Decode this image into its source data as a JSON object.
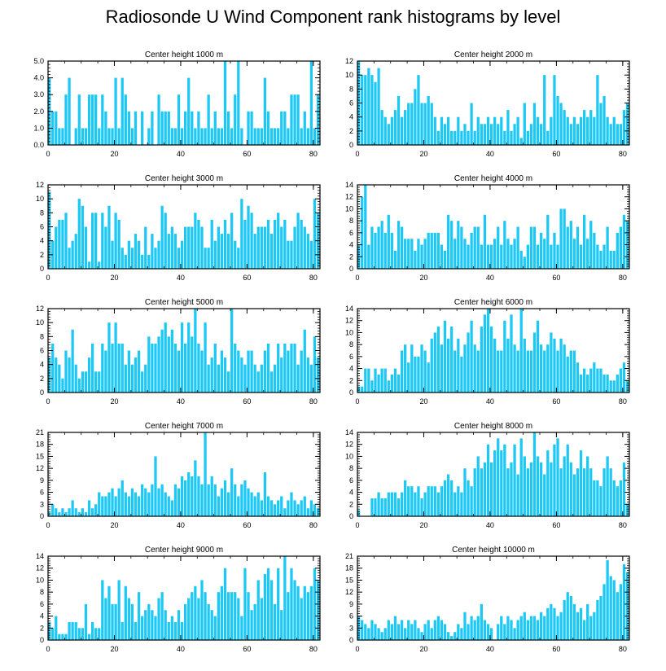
{
  "title": "Radiosonde U Wind Component rank histograms by level",
  "colors": {
    "bar": "#1ec8f5",
    "axis": "#000000"
  },
  "chart_data": [
    {
      "type": "bar",
      "title": "Center height 1000 m",
      "xlim": [
        0,
        82
      ],
      "ylim": [
        0,
        5
      ],
      "xticks": [
        0,
        20,
        40,
        60,
        80
      ],
      "yticks": [
        0,
        1,
        2,
        3,
        4,
        5
      ],
      "yticklabels": [
        "0.0",
        "1.0",
        "2.0",
        "3.0",
        "4.0",
        "5.0"
      ],
      "values": [
        4,
        2,
        2,
        1,
        1,
        3,
        4,
        0,
        1,
        3,
        1,
        1,
        3,
        3,
        3,
        1,
        3,
        2,
        1,
        1,
        4,
        1,
        4,
        3,
        2,
        1,
        2,
        0,
        2,
        0,
        1,
        2,
        0,
        3,
        2,
        2,
        2,
        1,
        1,
        3,
        1,
        2,
        4,
        2,
        1,
        2,
        1,
        1,
        3,
        1,
        2,
        1,
        1,
        5,
        2,
        1,
        3,
        5,
        1,
        0,
        2,
        2,
        1,
        1,
        1,
        4,
        2,
        1,
        1,
        1,
        2,
        2,
        1,
        3,
        3,
        3,
        1,
        2,
        1,
        5,
        1,
        3
      ]
    },
    {
      "type": "bar",
      "title": "Center height 2000 m",
      "xlim": [
        0,
        82
      ],
      "ylim": [
        0,
        12
      ],
      "xticks": [
        0,
        20,
        40,
        60,
        80
      ],
      "yticks": [
        0,
        2,
        4,
        6,
        8,
        10,
        12
      ],
      "yticklabels": [
        "0",
        "2",
        "4",
        "6",
        "8",
        "10",
        "12"
      ],
      "values": [
        12,
        10,
        10,
        11,
        10,
        9,
        11,
        5,
        4,
        3,
        4,
        5,
        7,
        4,
        5,
        6,
        6,
        8,
        10,
        6,
        6,
        7,
        6,
        4,
        2,
        4,
        3,
        4,
        2,
        2,
        4,
        2,
        3,
        2,
        6,
        2,
        4,
        3,
        3,
        4,
        3,
        4,
        3,
        4,
        2,
        5,
        2,
        3,
        4,
        1,
        6,
        2,
        3,
        6,
        4,
        3,
        10,
        2,
        4,
        10,
        7,
        6,
        5,
        4,
        3,
        4,
        3,
        4,
        5,
        4,
        5,
        4,
        10,
        6,
        7,
        4,
        3,
        4,
        3,
        3,
        5,
        6
      ]
    },
    {
      "type": "bar",
      "title": "Center height 3000 m",
      "xlim": [
        0,
        82
      ],
      "ylim": [
        0,
        12
      ],
      "xticks": [
        0,
        20,
        40,
        60,
        80
      ],
      "yticks": [
        0,
        2,
        4,
        6,
        8,
        10,
        12
      ],
      "yticklabels": [
        "0",
        "2",
        "4",
        "6",
        "8",
        "10",
        "12"
      ],
      "values": [
        11,
        4,
        6,
        7,
        7,
        8,
        3,
        4,
        5,
        10,
        9,
        6,
        1,
        8,
        8,
        1,
        8,
        6,
        9,
        4,
        8,
        7,
        3,
        2,
        4,
        3,
        5,
        4,
        2,
        6,
        2,
        5,
        3,
        4,
        9,
        8,
        5,
        6,
        5,
        3,
        4,
        6,
        6,
        6,
        8,
        7,
        6,
        3,
        3,
        7,
        4,
        6,
        5,
        7,
        5,
        8,
        4,
        3,
        10,
        7,
        9,
        8,
        5,
        6,
        6,
        6,
        7,
        5,
        7,
        8,
        6,
        7,
        4,
        4,
        6,
        8,
        7,
        6,
        5,
        4,
        10,
        8
      ]
    },
    {
      "type": "bar",
      "title": "Center height 4000 m",
      "xlim": [
        0,
        82
      ],
      "ylim": [
        0,
        14
      ],
      "xticks": [
        0,
        20,
        40,
        60,
        80
      ],
      "yticks": [
        0,
        2,
        4,
        6,
        8,
        10,
        12,
        14
      ],
      "yticklabels": [
        "0",
        "2",
        "4",
        "6",
        "8",
        "10",
        "12",
        "14"
      ],
      "values": [
        4,
        12,
        14,
        4,
        7,
        6,
        7,
        8,
        6,
        9,
        6,
        3,
        8,
        7,
        5,
        5,
        5,
        3,
        5,
        4,
        5,
        6,
        6,
        6,
        6,
        4,
        3,
        9,
        8,
        5,
        8,
        7,
        5,
        4,
        6,
        7,
        7,
        4,
        9,
        4,
        4,
        5,
        7,
        4,
        8,
        5,
        4,
        5,
        7,
        3,
        2,
        4,
        7,
        7,
        4,
        6,
        5,
        9,
        4,
        6,
        4,
        10,
        10,
        7,
        8,
        5,
        7,
        4,
        9,
        5,
        8,
        6,
        4,
        3,
        4,
        7,
        3,
        3,
        6,
        7,
        9,
        8
      ]
    },
    {
      "type": "bar",
      "title": "Center height 5000 m",
      "xlim": [
        0,
        82
      ],
      "ylim": [
        0,
        12
      ],
      "xticks": [
        0,
        20,
        40,
        60,
        80
      ],
      "yticks": [
        0,
        2,
        4,
        6,
        8,
        10,
        12
      ],
      "yticklabels": [
        "0",
        "2",
        "4",
        "6",
        "8",
        "10",
        "12"
      ],
      "values": [
        5,
        7,
        5,
        4,
        2,
        6,
        5,
        9,
        4,
        2,
        3,
        3,
        5,
        7,
        3,
        3,
        7,
        6,
        10,
        7,
        10,
        7,
        7,
        4,
        6,
        4,
        5,
        6,
        3,
        4,
        8,
        7,
        7,
        8,
        9,
        10,
        8,
        9,
        7,
        6,
        10,
        7,
        10,
        8,
        12,
        7,
        6,
        10,
        4,
        5,
        7,
        4,
        6,
        5,
        3,
        12,
        7,
        6,
        5,
        4,
        6,
        6,
        4,
        3,
        4,
        6,
        7,
        3,
        4,
        7,
        5,
        7,
        6,
        7,
        7,
        4,
        6,
        9,
        5,
        4,
        8,
        5
      ]
    },
    {
      "type": "bar",
      "title": "Center height 6000 m",
      "xlim": [
        0,
        82
      ],
      "ylim": [
        0,
        14
      ],
      "xticks": [
        0,
        20,
        40,
        60,
        80
      ],
      "yticks": [
        0,
        2,
        4,
        6,
        8,
        10,
        12,
        14
      ],
      "yticklabels": [
        "0",
        "2",
        "4",
        "6",
        "8",
        "10",
        "12",
        "14"
      ],
      "values": [
        1,
        1,
        4,
        4,
        2,
        4,
        3,
        4,
        4,
        2,
        3,
        4,
        3,
        7,
        8,
        5,
        8,
        6,
        6,
        8,
        7,
        5,
        9,
        10,
        11,
        8,
        12,
        9,
        11,
        7,
        9,
        6,
        8,
        10,
        12,
        8,
        7,
        11,
        13,
        14,
        11,
        9,
        7,
        7,
        12,
        9,
        13,
        8,
        7,
        14,
        9,
        7,
        7,
        10,
        12,
        8,
        7,
        8,
        10,
        9,
        7,
        9,
        8,
        6,
        7,
        7,
        5,
        3,
        4,
        3,
        4,
        5,
        4,
        4,
        3,
        3,
        2,
        2,
        3,
        4,
        5,
        2
      ]
    },
    {
      "type": "bar",
      "title": "Center height 7000 m",
      "xlim": [
        0,
        82
      ],
      "ylim": [
        0,
        21
      ],
      "xticks": [
        0,
        20,
        40,
        60,
        80
      ],
      "yticks": [
        0,
        3,
        6,
        9,
        12,
        15,
        18,
        21
      ],
      "yticklabels": [
        "0",
        "3",
        "6",
        "9",
        "12",
        "15",
        "18",
        "21"
      ],
      "values": [
        1,
        3,
        2,
        1,
        2,
        1,
        2,
        4,
        2,
        1,
        2,
        1,
        4,
        2,
        3,
        6,
        5,
        5,
        6,
        7,
        5,
        7,
        9,
        6,
        5,
        7,
        6,
        5,
        8,
        7,
        6,
        8,
        15,
        7,
        8,
        6,
        5,
        4,
        8,
        7,
        10,
        9,
        11,
        10,
        14,
        10,
        8,
        21,
        8,
        10,
        8,
        5,
        7,
        9,
        6,
        12,
        8,
        5,
        8,
        9,
        7,
        6,
        5,
        6,
        4,
        11,
        5,
        4,
        3,
        4,
        5,
        2,
        4,
        6,
        4,
        3,
        4,
        5,
        2,
        4,
        3,
        2
      ]
    },
    {
      "type": "bar",
      "title": "Center height 8000 m",
      "xlim": [
        0,
        82
      ],
      "ylim": [
        0,
        14
      ],
      "xticks": [
        0,
        20,
        40,
        60,
        80
      ],
      "yticks": [
        0,
        2,
        4,
        6,
        8,
        10,
        12,
        14
      ],
      "yticklabels": [
        "0",
        "2",
        "4",
        "6",
        "8",
        "10",
        "12",
        "14"
      ],
      "values": [
        1,
        0,
        0,
        0,
        3,
        3,
        4,
        3,
        3,
        4,
        4,
        4,
        3,
        4,
        6,
        5,
        5,
        4,
        5,
        3,
        4,
        5,
        5,
        5,
        4,
        5,
        6,
        7,
        6,
        4,
        5,
        4,
        8,
        6,
        5,
        8,
        10,
        8,
        9,
        12,
        9,
        11,
        13,
        11,
        12,
        8,
        9,
        12,
        7,
        13,
        10,
        8,
        9,
        14,
        10,
        9,
        7,
        11,
        9,
        12,
        13,
        8,
        10,
        12,
        9,
        7,
        8,
        11,
        8,
        10,
        8,
        6,
        6,
        5,
        8,
        10,
        8,
        6,
        5,
        6,
        9,
        2
      ]
    },
    {
      "type": "bar",
      "title": "Center height 9000 m",
      "xlim": [
        0,
        82
      ],
      "ylim": [
        0,
        14
      ],
      "xticks": [
        0,
        20,
        40,
        60,
        80
      ],
      "yticks": [
        0,
        2,
        4,
        6,
        8,
        10,
        12,
        14
      ],
      "yticklabels": [
        "0",
        "2",
        "4",
        "6",
        "8",
        "10",
        "12",
        "14"
      ],
      "values": [
        3,
        2,
        4,
        1,
        1,
        1,
        3,
        3,
        3,
        2,
        2,
        6,
        1,
        3,
        2,
        2,
        10,
        7,
        9,
        6,
        6,
        10,
        3,
        9,
        7,
        6,
        3,
        8,
        4,
        5,
        6,
        5,
        4,
        7,
        8,
        5,
        3,
        4,
        3,
        5,
        3,
        6,
        7,
        8,
        9,
        7,
        10,
        8,
        6,
        5,
        4,
        8,
        9,
        12,
        8,
        8,
        8,
        7,
        4,
        12,
        8,
        5,
        6,
        10,
        7,
        11,
        12,
        10,
        6,
        12,
        5,
        14,
        8,
        12,
        10,
        9,
        7,
        9,
        8,
        9,
        12,
        10
      ]
    },
    {
      "type": "bar",
      "title": "Center height 10000 m",
      "xlim": [
        0,
        82
      ],
      "ylim": [
        0,
        21
      ],
      "xticks": [
        0,
        20,
        40,
        60,
        80
      ],
      "yticks": [
        0,
        3,
        6,
        9,
        12,
        15,
        18,
        21
      ],
      "yticklabels": [
        "0",
        "3",
        "6",
        "9",
        "12",
        "15",
        "18",
        "21"
      ],
      "values": [
        6,
        5,
        4,
        3,
        5,
        4,
        3,
        2,
        3,
        5,
        4,
        6,
        4,
        5,
        3,
        5,
        4,
        5,
        3,
        2,
        4,
        5,
        3,
        5,
        6,
        5,
        4,
        2,
        1,
        2,
        4,
        3,
        7,
        4,
        6,
        5,
        6,
        9,
        5,
        4,
        3,
        0,
        4,
        6,
        4,
        6,
        5,
        3,
        5,
        6,
        7,
        5,
        6,
        6,
        5,
        7,
        6,
        8,
        9,
        8,
        6,
        7,
        10,
        12,
        11,
        9,
        7,
        8,
        5,
        9,
        6,
        7,
        10,
        11,
        14,
        20,
        16,
        15,
        12,
        14,
        19,
        17
      ]
    }
  ]
}
